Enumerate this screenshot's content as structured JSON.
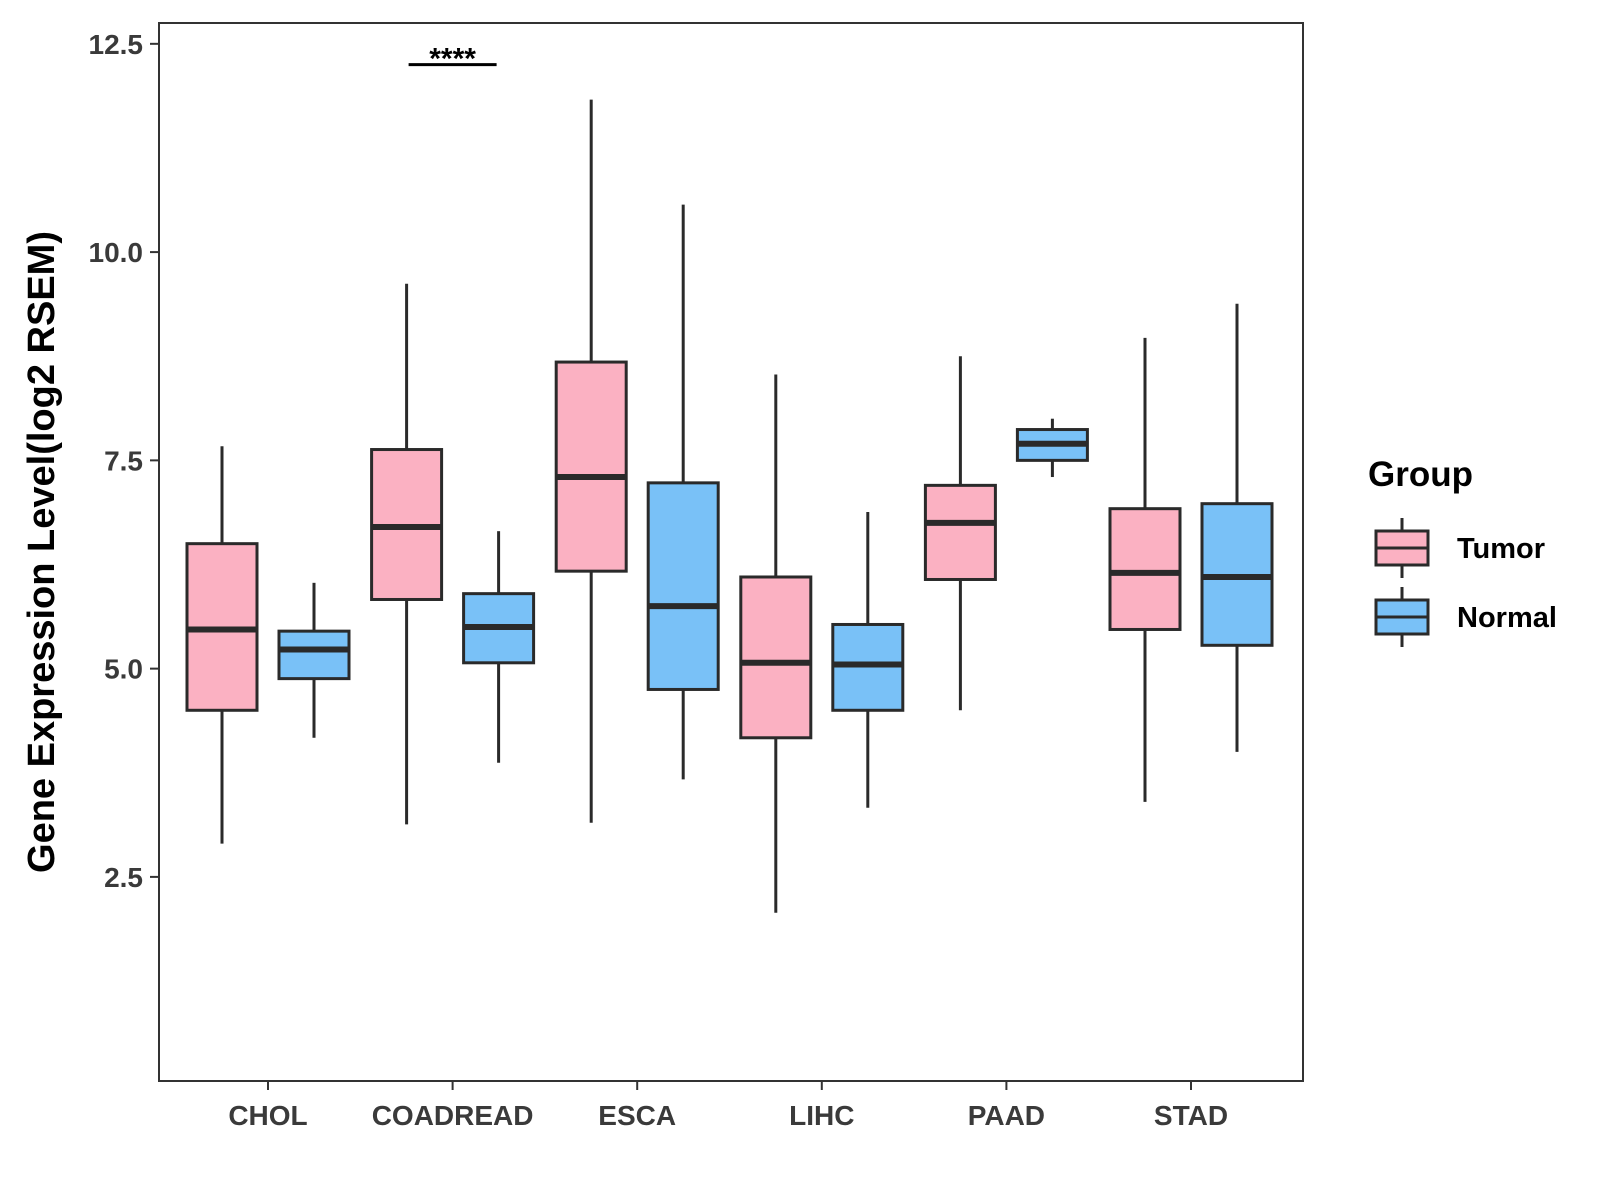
{
  "chart_data": {
    "type": "boxplot",
    "title": "",
    "xlabel": "",
    "ylabel": "Gene Expression Level(log2 RSEM)",
    "ylim": [
      0.05,
      12.75
    ],
    "yticks": [
      2.5,
      5.0,
      7.5,
      10.0,
      12.5
    ],
    "ytick_labels": [
      "2.5",
      "5.0",
      "7.5",
      "10.0",
      "12.5"
    ],
    "grid": false,
    "categories": [
      "CHOL",
      "COADREAD",
      "ESCA",
      "LIHC",
      "PAAD",
      "STAD"
    ],
    "legend": {
      "title": "Group",
      "position": "right",
      "entries": [
        "Tumor",
        "Normal"
      ]
    },
    "colors": {
      "Tumor": "#fbb1c2",
      "Normal": "#79c1f7",
      "stroke": "#2a2a2a"
    },
    "series": [
      {
        "name": "Tumor",
        "boxes": [
          {
            "min": 2.9,
            "q1": 4.5,
            "median": 5.47,
            "q3": 6.5,
            "max": 7.67
          },
          {
            "min": 3.13,
            "q1": 5.83,
            "median": 6.7,
            "q3": 7.63,
            "max": 9.62
          },
          {
            "min": 3.15,
            "q1": 6.17,
            "median": 7.3,
            "q3": 8.68,
            "max": 11.83
          },
          {
            "min": 2.07,
            "q1": 4.17,
            "median": 5.07,
            "q3": 6.1,
            "max": 8.53
          },
          {
            "min": 4.5,
            "q1": 6.07,
            "median": 6.75,
            "q3": 7.2,
            "max": 8.75
          },
          {
            "min": 3.4,
            "q1": 5.47,
            "median": 6.15,
            "q3": 6.92,
            "max": 8.97
          }
        ]
      },
      {
        "name": "Normal",
        "boxes": [
          {
            "min": 4.17,
            "q1": 4.88,
            "median": 5.23,
            "q3": 5.45,
            "max": 6.03
          },
          {
            "min": 3.87,
            "q1": 5.07,
            "median": 5.5,
            "q3": 5.9,
            "max": 6.65
          },
          {
            "min": 3.67,
            "q1": 4.75,
            "median": 5.75,
            "q3": 7.23,
            "max": 10.57
          },
          {
            "min": 3.33,
            "q1": 4.5,
            "median": 5.05,
            "q3": 5.53,
            "max": 6.88
          },
          {
            "min": 7.3,
            "q1": 7.5,
            "median": 7.7,
            "q3": 7.87,
            "max": 8.0
          },
          {
            "min": 4.0,
            "q1": 5.28,
            "median": 6.1,
            "q3": 6.98,
            "max": 9.38
          }
        ]
      }
    ],
    "annotations": [
      {
        "category": "COADREAD",
        "text": "****",
        "y": 12.25
      }
    ]
  }
}
